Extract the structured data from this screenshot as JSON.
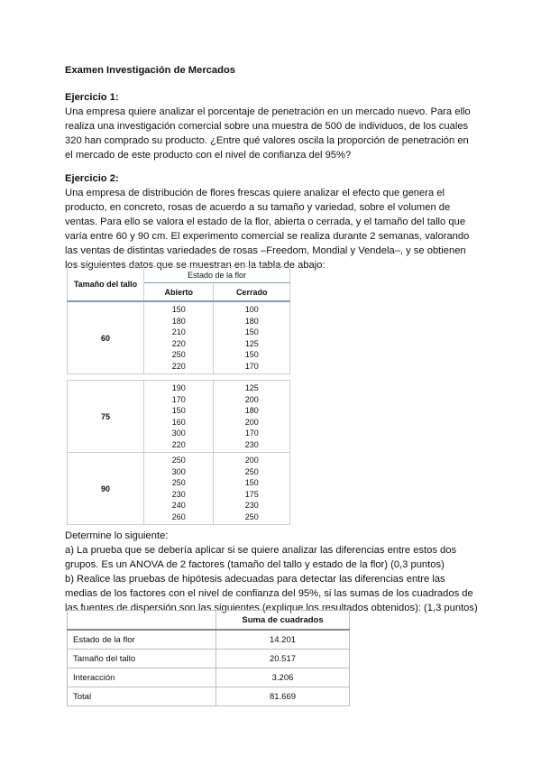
{
  "title": "Examen Investigación de Mercados",
  "ex1": {
    "heading": "Ejercicio 1:",
    "lines": [
      "Una empresa quiere analizar el porcentaje de penetración en un mercado nuevo. Para ello",
      "realiza una investigación comercial sobre una muestra de 500 de individuos, de los cuales",
      "320 han comprado su producto. ¿Entre qué valores oscila la proporción de penetración en",
      "el mercado de este producto con el nivel de confianza del 95%?"
    ]
  },
  "ex2": {
    "heading": "Ejercicio 2:",
    "lines": [
      "Una empresa de distribución de flores frescas quiere analizar el efecto que genera el",
      "producto, en concreto, rosas de acuerdo a su tamaño y variedad, sobre el volumen de",
      "ventas. Para ello se valora el estado de la flor, abierta o cerrada, y el tamaño del tallo que",
      "varía entre 60 y 90 cm. El experimento comercial se realiza durante 2 semanas, valorando",
      "las ventas de distintas variedades de rosas –Freedom, Mondial y Vendela–, y se obtienen",
      "los siguientes datos que se muestran en la tabla de abajo:"
    ]
  },
  "table1": {
    "col_size": "Tamaño del tallo",
    "group": "Estado de la flor",
    "col_open": "Abierto",
    "col_closed": "Cerrado",
    "rows": [
      {
        "size": "60",
        "open": [
          "150",
          "180",
          "210",
          "220",
          "250",
          "220"
        ],
        "closed": [
          "100",
          "180",
          "150",
          "125",
          "150",
          "170"
        ]
      },
      {
        "size": "75",
        "open": [
          "190",
          "170",
          "150",
          "160",
          "300",
          "220"
        ],
        "closed": [
          "125",
          "200",
          "180",
          "200",
          "170",
          "230"
        ]
      },
      {
        "size": "90",
        "open": [
          "250",
          "300",
          "250",
          "230",
          "240",
          "260"
        ],
        "closed": [
          "200",
          "250",
          "150",
          "175",
          "230",
          "250"
        ]
      }
    ]
  },
  "questions": [
    "Determine lo siguiente:",
    "a) La prueba que se debería aplicar si se quiere analizar las diferencias entre estos dos",
    "grupos. Es un ANOVA de 2 factores (tamaño del tallo y estado de la flor) (0,3 puntos)",
    "b) Realice las pruebas de hipótesis adecuadas para detectar las diferencias entre las",
    "medias de los factores con el nivel de confianza del 95%, si las sumas de los cuadrados de",
    "las fuentes de dispersión son las siguientes (explique los resultados obtenidos): (1,3 puntos)"
  ],
  "table2": {
    "header": "Suma de cuadrados",
    "rows": [
      {
        "label": "Estado de la flor",
        "value": "14.201"
      },
      {
        "label": "Tamaño del tallo",
        "value": "20.517"
      },
      {
        "label": "Interacción",
        "value": "3.206"
      },
      {
        "label": "Total",
        "value": "81.669"
      }
    ]
  }
}
